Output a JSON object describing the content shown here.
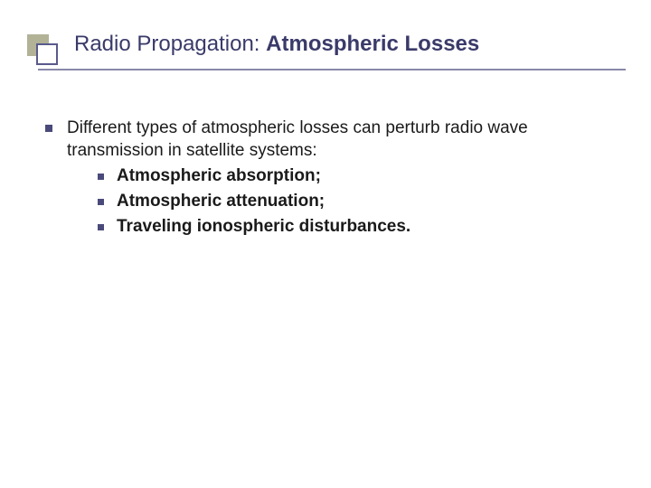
{
  "title": {
    "part1": "Radio Propagation: ",
    "part2_bold": "Atmospheric Losses"
  },
  "main_bullet": {
    "text": "Different types of atmospheric losses can perturb radio wave transmission in satellite systems:"
  },
  "sub_bullets": [
    {
      "text": "Atmospheric absorption;"
    },
    {
      "text": "Atmospheric attenuation;"
    },
    {
      "text": "Traveling ionospheric disturbances."
    }
  ],
  "colors": {
    "bullet": "#4a4a7a",
    "title": "#3a3a6a",
    "underline": "#8888aa",
    "box_back": "#b2b297",
    "box_front_border": "#5a5a8c"
  }
}
